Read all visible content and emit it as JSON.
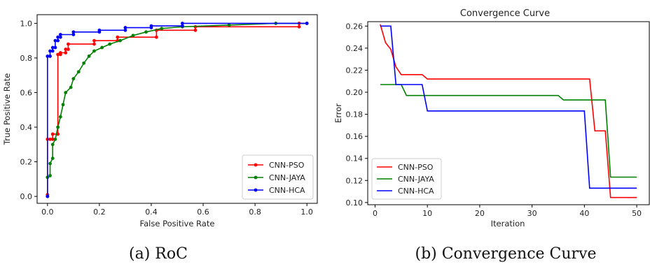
{
  "chart_data": [
    {
      "type": "line",
      "title": "",
      "caption": "(a) RoC",
      "xlabel": "False Positive Rate",
      "ylabel": "True Positive Rate",
      "xlim": [
        -0.04,
        1.04
      ],
      "ylim": [
        -0.04,
        1.05
      ],
      "xticks": [
        "0.0",
        "0.2",
        "0.4",
        "0.6",
        "0.8",
        "1.0"
      ],
      "yticks": [
        "0.0",
        "0.2",
        "0.4",
        "0.6",
        "0.8",
        "1.0"
      ],
      "legend_position": "lower-right",
      "markers": true,
      "series": [
        {
          "name": "CNN-PSO",
          "color": "#ff0000",
          "points": [
            [
              0,
              0
            ],
            [
              0,
              0.01
            ],
            [
              0,
              0.33
            ],
            [
              0.01,
              0.33
            ],
            [
              0.02,
              0.33
            ],
            [
              0.02,
              0.36
            ],
            [
              0.04,
              0.36
            ],
            [
              0.04,
              0.82
            ],
            [
              0.05,
              0.82
            ],
            [
              0.05,
              0.83
            ],
            [
              0.07,
              0.83
            ],
            [
              0.07,
              0.85
            ],
            [
              0.08,
              0.85
            ],
            [
              0.08,
              0.88
            ],
            [
              0.18,
              0.88
            ],
            [
              0.18,
              0.9
            ],
            [
              0.27,
              0.9
            ],
            [
              0.27,
              0.92
            ],
            [
              0.42,
              0.92
            ],
            [
              0.42,
              0.96
            ],
            [
              0.57,
              0.96
            ],
            [
              0.57,
              0.98
            ],
            [
              0.97,
              0.98
            ],
            [
              0.97,
              1.0
            ],
            [
              1.0,
              1.0
            ]
          ]
        },
        {
          "name": "CNN-JAYA",
          "color": "#008000",
          "points": [
            [
              0,
              0
            ],
            [
              0,
              0.11
            ],
            [
              0.01,
              0.12
            ],
            [
              0.01,
              0.19
            ],
            [
              0.02,
              0.22
            ],
            [
              0.02,
              0.3
            ],
            [
              0.03,
              0.33
            ],
            [
              0.04,
              0.4
            ],
            [
              0.05,
              0.46
            ],
            [
              0.06,
              0.53
            ],
            [
              0.07,
              0.6
            ],
            [
              0.09,
              0.63
            ],
            [
              0.1,
              0.68
            ],
            [
              0.12,
              0.72
            ],
            [
              0.14,
              0.77
            ],
            [
              0.16,
              0.81
            ],
            [
              0.18,
              0.84
            ],
            [
              0.21,
              0.86
            ],
            [
              0.24,
              0.88
            ],
            [
              0.28,
              0.9
            ],
            [
              0.33,
              0.93
            ],
            [
              0.38,
              0.95
            ],
            [
              0.44,
              0.97
            ],
            [
              0.52,
              0.98
            ],
            [
              0.7,
              0.99
            ],
            [
              0.88,
              1.0
            ],
            [
              1.0,
              1.0
            ]
          ]
        },
        {
          "name": "CNN-HCA",
          "color": "#0000ff",
          "points": [
            [
              0,
              0
            ],
            [
              0,
              0.81
            ],
            [
              0.01,
              0.81
            ],
            [
              0.01,
              0.84
            ],
            [
              0.02,
              0.84
            ],
            [
              0.02,
              0.86
            ],
            [
              0.03,
              0.86
            ],
            [
              0.03,
              0.9
            ],
            [
              0.04,
              0.9
            ],
            [
              0.04,
              0.92
            ],
            [
              0.05,
              0.92
            ],
            [
              0.05,
              0.935
            ],
            [
              0.1,
              0.935
            ],
            [
              0.1,
              0.95
            ],
            [
              0.2,
              0.95
            ],
            [
              0.2,
              0.96
            ],
            [
              0.3,
              0.96
            ],
            [
              0.3,
              0.975
            ],
            [
              0.4,
              0.975
            ],
            [
              0.4,
              0.985
            ],
            [
              0.52,
              0.985
            ],
            [
              0.52,
              1.0
            ],
            [
              1.0,
              1.0
            ]
          ]
        }
      ]
    },
    {
      "type": "line",
      "title": "Convergence Curve",
      "caption": "(b) Convergence Curve",
      "xlabel": "Iteration",
      "ylabel": "Error",
      "xlim": [
        -1.4,
        52.4
      ],
      "ylim": [
        0.098,
        0.264
      ],
      "xticks": [
        "0",
        "10",
        "20",
        "30",
        "40",
        "50"
      ],
      "yticks": [
        "0.10",
        "0.12",
        "0.14",
        "0.16",
        "0.18",
        "0.20",
        "0.22",
        "0.24",
        "0.26"
      ],
      "legend_position": "lower-left",
      "markers": false,
      "series": [
        {
          "name": "CNN-PSO",
          "color": "#ff0000",
          "points": [
            [
              1,
              0.2615
            ],
            [
              2,
              0.245
            ],
            [
              3,
              0.239
            ],
            [
              4,
              0.223
            ],
            [
              5,
              0.216
            ],
            [
              6,
              0.216
            ],
            [
              7,
              0.216
            ],
            [
              8,
              0.216
            ],
            [
              9,
              0.216
            ],
            [
              10,
              0.212
            ],
            [
              11,
              0.212
            ],
            [
              40,
              0.212
            ],
            [
              41,
              0.212
            ],
            [
              42,
              0.165
            ],
            [
              43,
              0.165
            ],
            [
              44,
              0.165
            ],
            [
              45,
              0.1045
            ],
            [
              50,
              0.1045
            ]
          ]
        },
        {
          "name": "CNN-JAYA",
          "color": "#008000",
          "points": [
            [
              1,
              0.207
            ],
            [
              5,
              0.207
            ],
            [
              6,
              0.197
            ],
            [
              35,
              0.197
            ],
            [
              36,
              0.193
            ],
            [
              44,
              0.193
            ],
            [
              45,
              0.123
            ],
            [
              50,
              0.123
            ]
          ]
        },
        {
          "name": "CNN-HCA",
          "color": "#0000ff",
          "points": [
            [
              1,
              0.26
            ],
            [
              3,
              0.26
            ],
            [
              4,
              0.207
            ],
            [
              9,
              0.207
            ],
            [
              10,
              0.183
            ],
            [
              40,
              0.183
            ],
            [
              41,
              0.113
            ],
            [
              50,
              0.113
            ]
          ]
        }
      ]
    }
  ]
}
